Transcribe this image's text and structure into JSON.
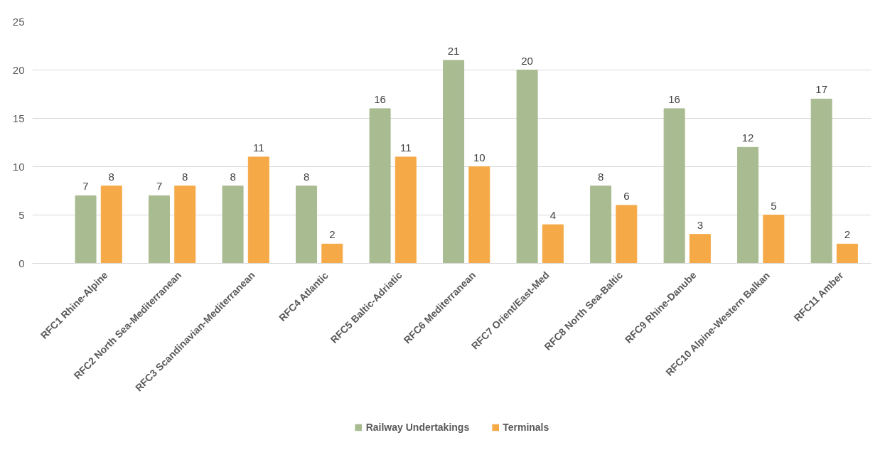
{
  "chart_data": {
    "type": "bar",
    "categories": [
      "RFC1 Rhine-Alpine",
      "RFC2 North Sea-Mediterranean",
      "RFC3 Scandinavian-Mediterranean",
      "RFC4 Atlantic",
      "RFC5 Baltic-Adriatic",
      "RFC6 Mediterranean",
      "RFC7 Orient/East-Med",
      "RFC8 North Sea-Baltic",
      "RFC9 Rhine-Danube",
      "RFC10 Alpine-Western Balkan",
      "RFC11 Amber"
    ],
    "series": [
      {
        "name": "Railway Undertakings",
        "color": "#a9bb91",
        "values": [
          7,
          7,
          8,
          8,
          16,
          21,
          20,
          8,
          16,
          12,
          17
        ]
      },
      {
        "name": "Terminals",
        "color": "#f5a947",
        "values": [
          8,
          8,
          11,
          2,
          11,
          10,
          4,
          6,
          3,
          5,
          2
        ]
      }
    ],
    "ylim": [
      0,
      25
    ],
    "yticks": [
      0,
      5,
      10,
      15,
      20,
      25
    ],
    "grid": "y",
    "legend": "bottom",
    "data_labels": true
  }
}
